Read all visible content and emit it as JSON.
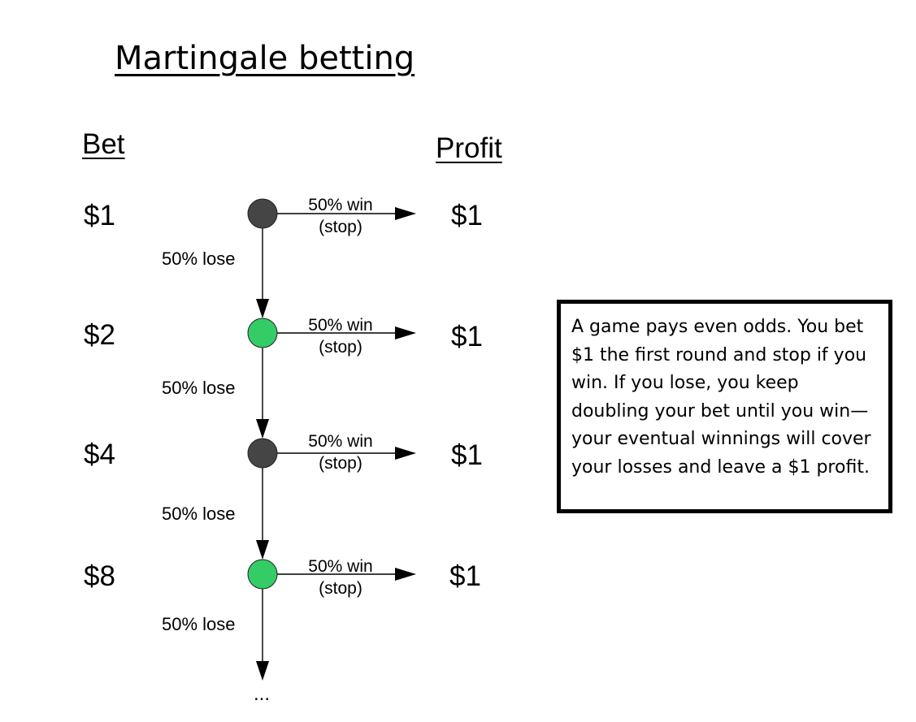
{
  "title": "Martingale betting",
  "headers": {
    "bet": "Bet",
    "profit": "Profit"
  },
  "win_label": {
    "line1": "50% win",
    "line2": "(stop)"
  },
  "lose_label": "50% lose",
  "ellipsis": "...",
  "rounds": [
    {
      "bet": "$1",
      "profit": "$1",
      "node_color": "#454545"
    },
    {
      "bet": "$2",
      "profit": "$1",
      "node_color": "#33cc66"
    },
    {
      "bet": "$4",
      "profit": "$1",
      "node_color": "#454545"
    },
    {
      "bet": "$8",
      "profit": "$1",
      "node_color": "#33cc66"
    }
  ],
  "note": "A game pays even odds. You bet $1 the first round and stop if you win. If you lose, you keep doubling your bet until you win—your eventual winnings will cover your losses and leave a $1 profit."
}
